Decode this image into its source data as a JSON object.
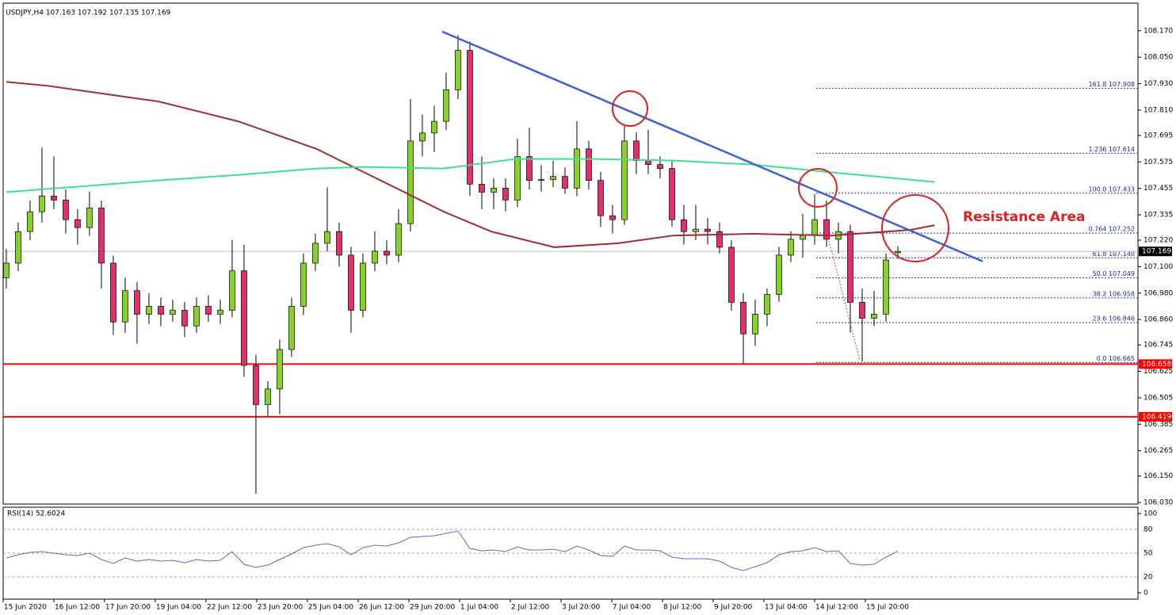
{
  "chart_data": [
    {
      "type": "candlestick",
      "title": "USDJPY,H4  107.163 107.192 107.135 107.169",
      "up_color": "#86d12a",
      "down_color": "#e1306c",
      "xlim": [
        -0.53,
        95.2
      ],
      "ylim": [
        106.023,
        108.295
      ],
      "yticks": [
        {
          "value": 108.17,
          "label": "108.170"
        },
        {
          "value": 108.05,
          "label": "108.050"
        },
        {
          "value": 107.93,
          "label": "107.930"
        },
        {
          "value": 107.81,
          "label": "107.810"
        },
        107.695,
        107.575,
        107.455,
        107.335,
        {
          "value": 107.22,
          "label": "107.220"
        },
        {
          "value": 107.1,
          "label": "107.100"
        },
        {
          "value": 106.98,
          "label": "106.980"
        },
        {
          "value": 106.86,
          "label": "106.860"
        },
        106.745,
        106.625,
        106.505,
        106.385,
        106.265,
        {
          "value": 106.15,
          "label": "106.150"
        },
        {
          "value": 106.03,
          "label": "106.030"
        }
      ],
      "xticks": [
        {
          "value": -0.27,
          "label": "15 Jun 2020"
        },
        {
          "value": 4.0,
          "label": "16 Jun 12:00"
        },
        {
          "value": 8.26,
          "label": "17 Jun 20:00"
        },
        {
          "value": 12.53,
          "label": "19 Jun 04:00"
        },
        {
          "value": 16.8,
          "label": "22 Jun 12:00"
        },
        {
          "value": 21.07,
          "label": "23 Jun 20:00"
        },
        {
          "value": 25.33,
          "label": "25 Jun 04:00"
        },
        {
          "value": 29.6,
          "label": "26 Jun 12:00"
        },
        {
          "value": 33.87,
          "label": "29 Jun 20:00"
        },
        {
          "value": 38.13,
          "label": "1 Jul 04:00"
        },
        {
          "value": 42.4,
          "label": "2 Jul 12:00"
        },
        {
          "value": 46.67,
          "label": "3 Jul 20:00"
        },
        {
          "value": 50.93,
          "label": "7 Jul 04:00"
        },
        {
          "value": 55.2,
          "label": "8 Jul 12:00"
        },
        {
          "value": 59.47,
          "label": "9 Jul 20:00"
        },
        {
          "value": 63.73,
          "label": "13 Jul 04:00"
        },
        {
          "value": 68.0,
          "label": "14 Jul 12:00"
        },
        {
          "value": 72.27,
          "label": "15 Jul 20:00"
        }
      ],
      "candles": [
        [
          107.05,
          107.18,
          107.0,
          107.116
        ],
        [
          107.116,
          107.3,
          107.08,
          107.259
        ],
        [
          107.259,
          107.4,
          107.22,
          107.349
        ],
        [
          107.349,
          107.64,
          107.3,
          107.42
        ],
        [
          107.42,
          107.6,
          107.36,
          107.402
        ],
        [
          107.402,
          107.45,
          107.25,
          107.313
        ],
        [
          107.313,
          107.36,
          107.2,
          107.277
        ],
        [
          107.277,
          107.44,
          107.24,
          107.366
        ],
        [
          107.366,
          107.4,
          107.0,
          107.116
        ],
        [
          107.116,
          107.15,
          106.79,
          106.849
        ],
        [
          106.849,
          107.05,
          106.8,
          106.991
        ],
        [
          106.991,
          107.03,
          106.75,
          106.884
        ],
        [
          106.884,
          106.98,
          106.84,
          106.92
        ],
        [
          106.92,
          106.96,
          106.83,
          106.884
        ],
        [
          106.884,
          106.95,
          106.85,
          106.902
        ],
        [
          106.902,
          106.94,
          106.78,
          106.831
        ],
        [
          106.831,
          106.96,
          106.8,
          106.92
        ],
        [
          106.92,
          106.97,
          106.85,
          106.884
        ],
        [
          106.884,
          106.95,
          106.84,
          106.902
        ],
        [
          106.902,
          107.22,
          106.87,
          107.081
        ],
        [
          107.081,
          107.2,
          106.6,
          106.652
        ],
        [
          106.652,
          106.7,
          106.07,
          106.474
        ],
        [
          106.474,
          106.58,
          106.42,
          106.545
        ],
        [
          106.545,
          106.77,
          106.43,
          106.724
        ],
        [
          106.724,
          106.96,
          106.69,
          106.92
        ],
        [
          106.92,
          107.16,
          106.88,
          107.116
        ],
        [
          107.116,
          107.25,
          107.08,
          107.206
        ],
        [
          107.206,
          107.46,
          107.17,
          107.259
        ],
        [
          107.259,
          107.3,
          107.1,
          107.152
        ],
        [
          107.152,
          107.19,
          106.8,
          106.902
        ],
        [
          106.902,
          107.16,
          106.87,
          107.116
        ],
        [
          107.116,
          107.26,
          107.08,
          107.17
        ],
        [
          107.17,
          107.22,
          107.11,
          107.152
        ],
        [
          107.152,
          107.36,
          107.12,
          107.295
        ],
        [
          107.295,
          107.86,
          107.26,
          107.67
        ],
        [
          107.67,
          107.79,
          107.6,
          107.706
        ],
        [
          107.706,
          107.83,
          107.62,
          107.759
        ],
        [
          107.759,
          107.98,
          107.72,
          107.902
        ],
        [
          107.902,
          108.15,
          107.86,
          108.081
        ],
        [
          108.081,
          108.12,
          107.42,
          107.474
        ],
        [
          107.474,
          107.6,
          107.36,
          107.438
        ],
        [
          107.438,
          107.5,
          107.36,
          107.456
        ],
        [
          107.456,
          107.5,
          107.35,
          107.402
        ],
        [
          107.402,
          107.68,
          107.37,
          107.599
        ],
        [
          107.599,
          107.73,
          107.45,
          107.491
        ],
        [
          107.491,
          107.56,
          107.44,
          107.495
        ],
        [
          107.495,
          107.58,
          107.46,
          107.509
        ],
        [
          107.509,
          107.55,
          107.43,
          107.456
        ],
        [
          107.456,
          107.76,
          107.42,
          107.634
        ],
        [
          107.634,
          107.67,
          107.45,
          107.491
        ],
        [
          107.491,
          107.53,
          107.28,
          107.331
        ],
        [
          107.331,
          107.38,
          107.25,
          107.313
        ],
        [
          107.313,
          107.74,
          107.29,
          107.67
        ],
        [
          107.67,
          107.71,
          107.52,
          107.581
        ],
        [
          107.581,
          107.72,
          107.52,
          107.563
        ],
        [
          107.563,
          107.6,
          107.5,
          107.545
        ],
        [
          107.545,
          107.58,
          107.28,
          107.313
        ],
        [
          107.313,
          107.38,
          107.2,
          107.259
        ],
        [
          107.259,
          107.38,
          107.22,
          107.27
        ],
        [
          107.27,
          107.32,
          107.2,
          107.259
        ],
        [
          107.259,
          107.3,
          107.16,
          107.188
        ],
        [
          107.188,
          107.22,
          106.9,
          106.938
        ],
        [
          106.938,
          106.98,
          106.66,
          106.795
        ],
        [
          106.795,
          106.95,
          106.74,
          106.884
        ],
        [
          106.884,
          107.0,
          106.83,
          106.974
        ],
        [
          106.974,
          107.19,
          106.94,
          107.152
        ],
        [
          107.152,
          107.26,
          107.12,
          107.224
        ],
        [
          107.224,
          107.34,
          107.14,
          107.241
        ],
        [
          107.241,
          107.43,
          107.2,
          107.313
        ],
        [
          107.313,
          107.4,
          107.19,
          107.224
        ],
        [
          107.224,
          107.3,
          107.16,
          107.259
        ],
        [
          107.259,
          107.29,
          106.8,
          106.938
        ],
        [
          106.938,
          107.0,
          106.67,
          106.866
        ],
        [
          106.866,
          106.99,
          106.83,
          106.884
        ],
        [
          106.884,
          107.16,
          106.85,
          107.13
        ],
        [
          107.163,
          107.192,
          107.135,
          107.169
        ]
      ],
      "lines": [
        {
          "color": "#a52a2a",
          "x": [
            0,
            3.5,
            9.5,
            12.8,
            19.5,
            26.1,
            32.8,
            36.8,
            40.8,
            46.1,
            51.5,
            56.1,
            62.8,
            69.5,
            76.1,
            78.1
          ],
          "values": [
            107.938,
            107.92,
            107.874,
            107.849,
            107.759,
            107.634,
            107.456,
            107.349,
            107.259,
            107.188,
            107.206,
            107.241,
            107.249,
            107.241,
            107.267,
            107.288
          ]
        },
        {
          "color": "#3ee08a",
          "x": [
            0,
            6.1,
            12.8,
            19.5,
            26.1,
            30.1,
            36.8,
            42.8,
            49.5,
            56.1,
            62.8,
            69.5,
            78.1
          ],
          "values": [
            107.438,
            107.463,
            107.491,
            107.516,
            107.545,
            107.552,
            107.545,
            107.588,
            107.588,
            107.581,
            107.563,
            107.527,
            107.484
          ]
        },
        {
          "color": "#3f5fd6",
          "x": [
            36.67,
            82.13
          ],
          "values": [
            108.166,
            107.124
          ]
        }
      ],
      "fib_levels": [
        {
          "value": 107.908,
          "label": "161.8 107.908"
        },
        {
          "value": 107.614,
          "label": "1.236 107.614"
        },
        {
          "value": 107.433,
          "label": "100.0 107.433"
        },
        {
          "value": 107.252,
          "label": "0.764 107.252"
        },
        {
          "value": 107.14,
          "label": "61.8 107.140"
        },
        {
          "value": 107.049,
          "label": "50.0 107.049"
        },
        {
          "value": 106.958,
          "label": "38.2 106.958"
        },
        {
          "value": 106.846,
          "label": "23.6 106.846"
        },
        {
          "value": 106.665,
          "label": "0.0 106.665"
        }
      ],
      "hlines": [
        {
          "value": 106.658,
          "color": "#ff0000"
        },
        {
          "value": 106.419,
          "color": "#ff0000"
        }
      ],
      "current_price": {
        "value": 107.169,
        "color": "#000000"
      },
      "annotation": "Resistance Area"
    },
    {
      "type": "line",
      "title": "RSI(14) 52.6024",
      "color": "#7060c0",
      "ylim": [
        -8,
        108
      ],
      "yticks": [
        0,
        20,
        50,
        80,
        100
      ],
      "values": [
        44,
        48,
        51,
        52,
        50,
        48,
        47,
        50,
        42,
        37,
        44,
        40,
        42,
        40,
        41,
        38,
        42,
        40,
        41,
        52,
        36,
        32,
        35,
        42,
        49,
        57,
        60,
        62,
        58,
        48,
        57,
        60,
        59,
        63,
        70,
        71,
        72,
        75,
        78,
        56,
        53,
        54,
        52,
        58,
        54,
        54,
        55,
        52,
        59,
        54,
        47,
        46,
        59,
        54,
        54,
        53,
        45,
        43,
        43,
        43,
        40,
        32,
        28,
        33,
        38,
        48,
        52,
        53,
        57,
        52,
        53,
        37,
        35,
        36,
        45,
        52.6024
      ]
    }
  ]
}
